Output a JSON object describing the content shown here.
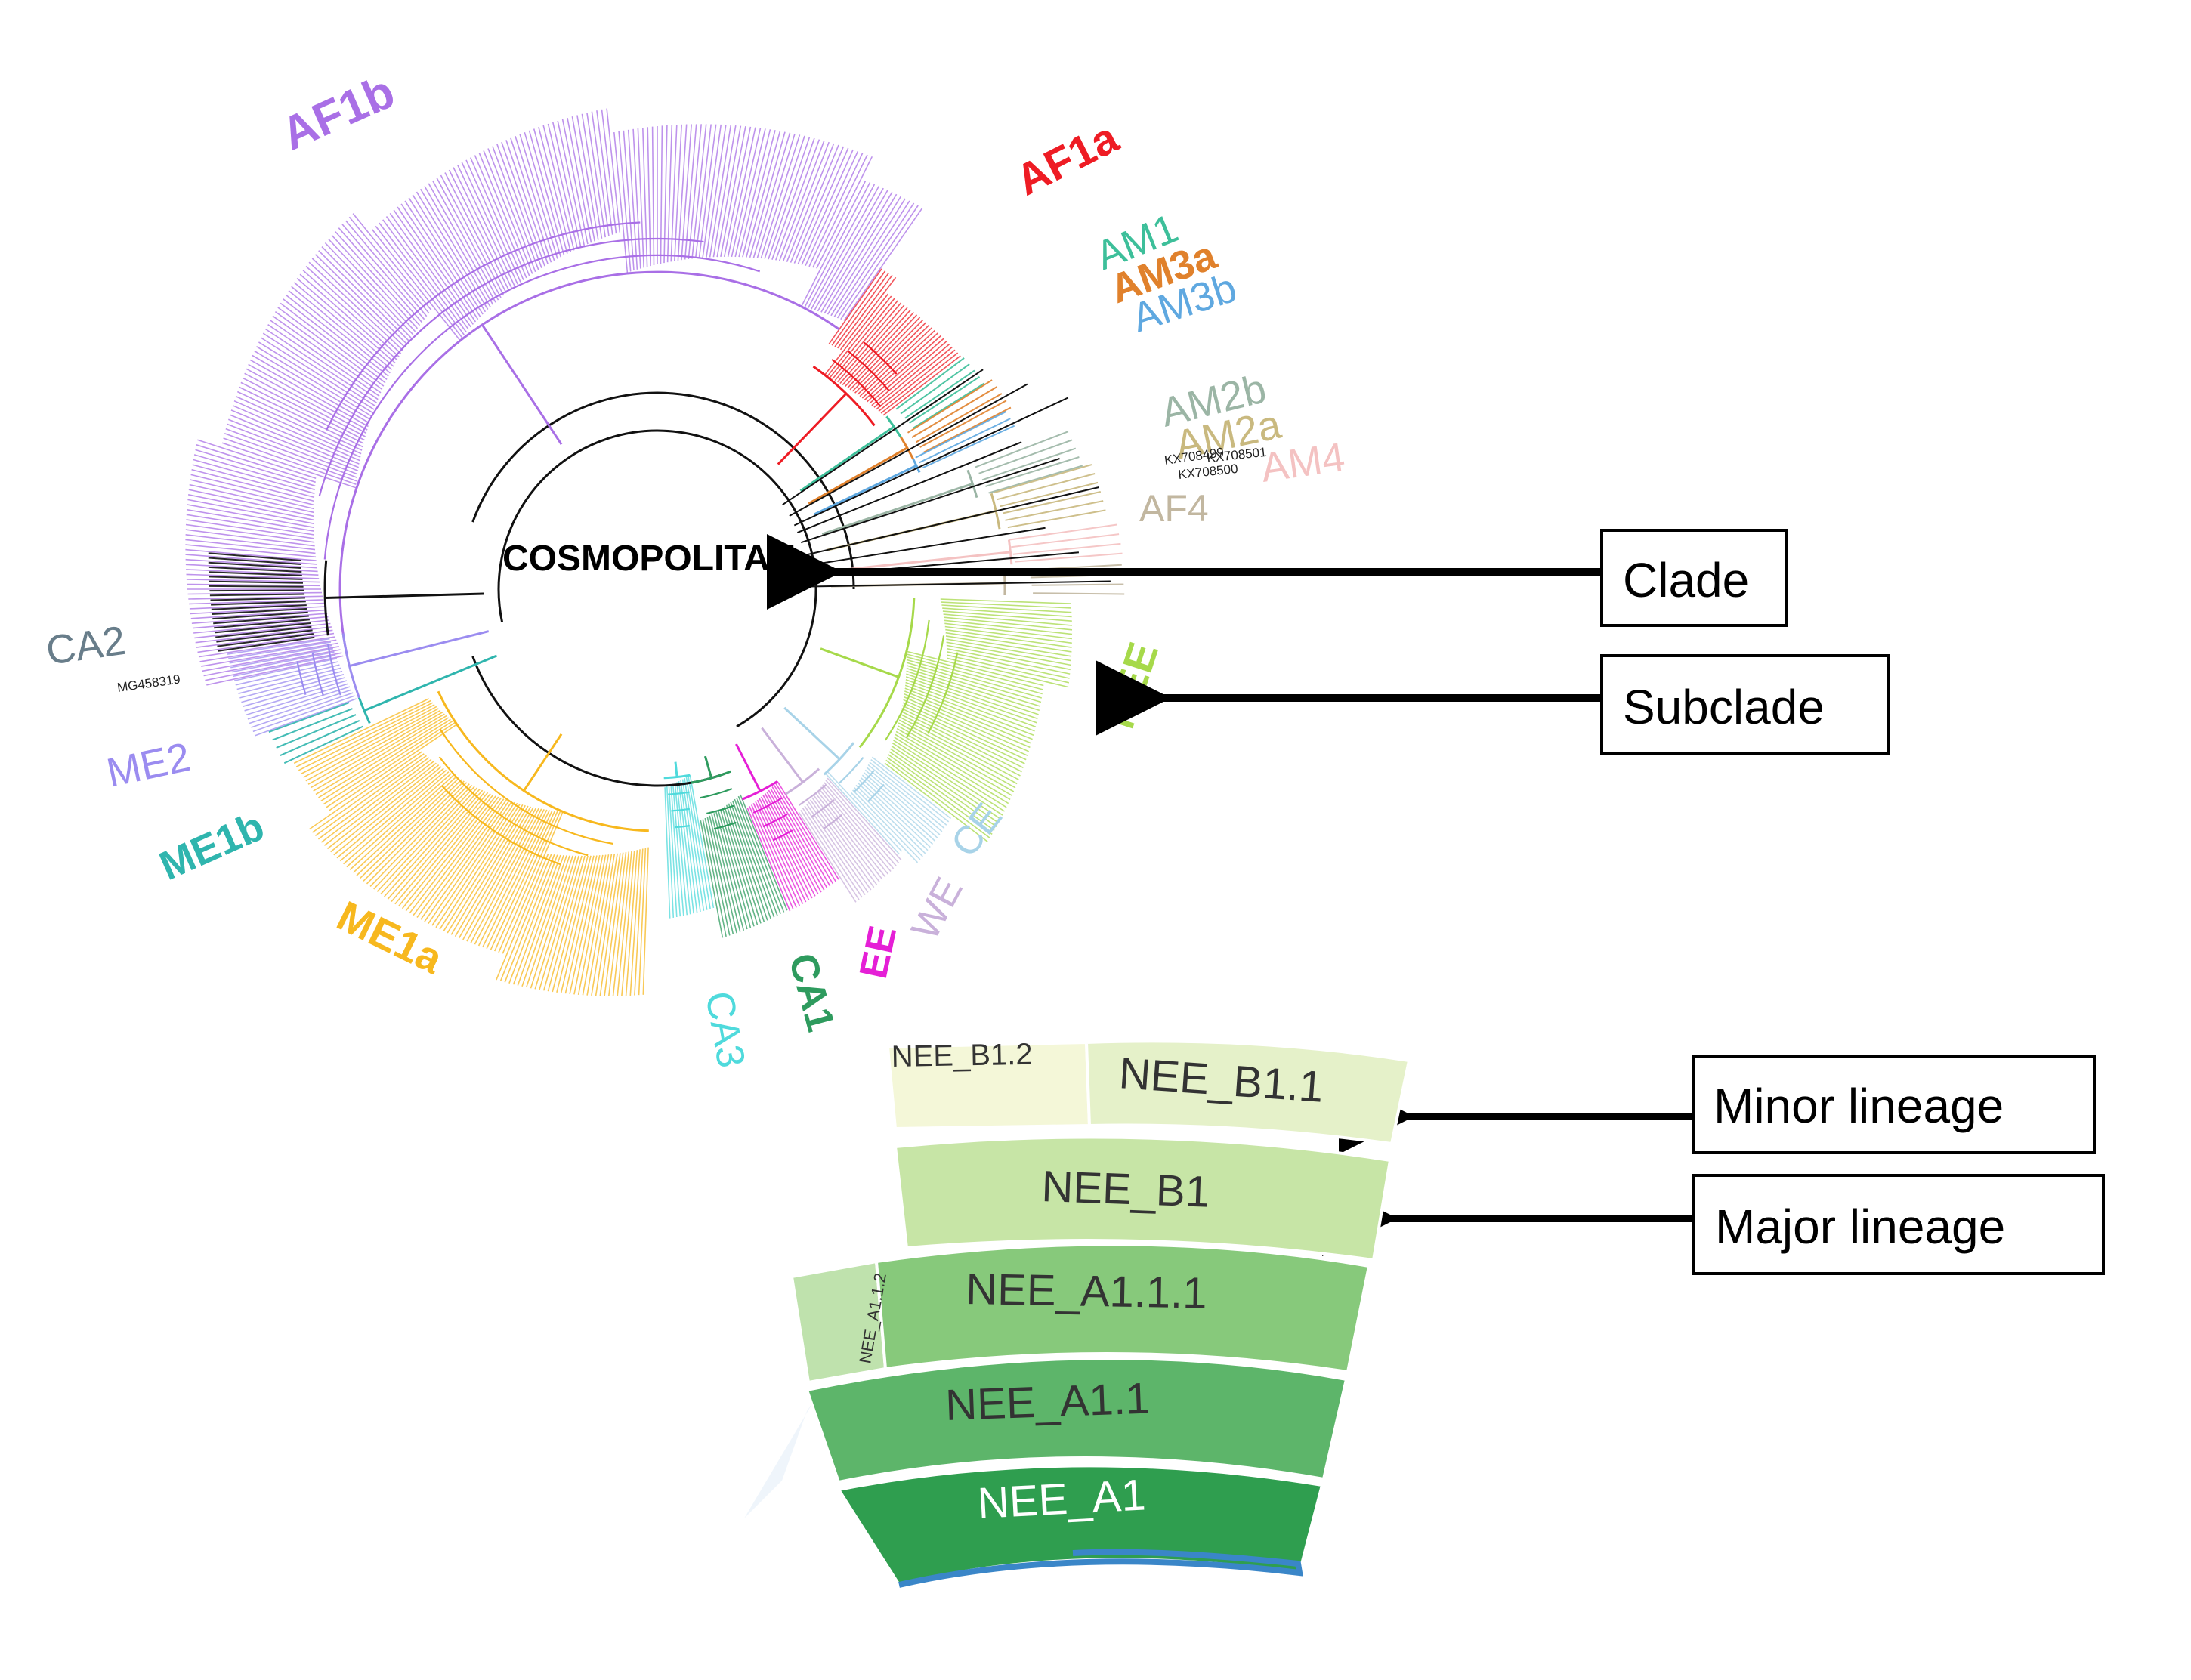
{
  "diagram": {
    "clade_name": "COSMOPOLITAN",
    "subclades": [
      {
        "label": "AF1b",
        "color": "#a96fe6"
      },
      {
        "label": "AF1a",
        "color": "#ee1c24"
      },
      {
        "label": "AM1",
        "color": "#3dbf9a"
      },
      {
        "label": "AM3a",
        "color": "#e0812c"
      },
      {
        "label": "AM3b",
        "color": "#5fa8e0"
      },
      {
        "label": "AM2b",
        "color": "#9bb5a5"
      },
      {
        "label": "AM2a",
        "color": "#c9b97f"
      },
      {
        "label": "AM4",
        "color": "#f4c2c2"
      },
      {
        "label": "AF4",
        "color": "#c2b7a0"
      },
      {
        "label": "NEE",
        "color": "#a6d94a"
      },
      {
        "label": "CE",
        "color": "#a8d3e8"
      },
      {
        "label": "WE",
        "color": "#c9b1da"
      },
      {
        "label": "EE",
        "color": "#e51fd6"
      },
      {
        "label": "CA1",
        "color": "#2e9b5e"
      },
      {
        "label": "CA3",
        "color": "#4fdadc"
      },
      {
        "label": "ME1a",
        "color": "#f7b81e"
      },
      {
        "label": "ME1b",
        "color": "#2fb5ae"
      },
      {
        "label": "ME2",
        "color": "#9b8cf0"
      },
      {
        "label": "CA2",
        "color": "#687d8a"
      }
    ],
    "leaf_labels": {
      "mg458319": "MG458319",
      "kx708499": "KX708499",
      "kx708501": "KX708501",
      "kx708500": "KX708500"
    }
  },
  "annotations": [
    {
      "label": "Clade"
    },
    {
      "label": "Subclade"
    },
    {
      "label": "Minor lineage"
    },
    {
      "label": "Major lineage"
    }
  ],
  "lineage_chart": {
    "segments": [
      {
        "label": "NEE_B1.2",
        "color": "#f4f7d8"
      },
      {
        "label": "NEE_B1.1",
        "color": "#e5f1c9"
      },
      {
        "label": "NEE_B1",
        "color": "#c7e5a6"
      },
      {
        "label": "NEE_A1.1.2",
        "color": "#bfe2ad"
      },
      {
        "label": "NEE_A1.1.1",
        "color": "#87c97b"
      },
      {
        "label": "NEE_A1.1",
        "color": "#5db56a"
      },
      {
        "label": "NEE_A1",
        "color": "#2f9e4f"
      }
    ]
  }
}
